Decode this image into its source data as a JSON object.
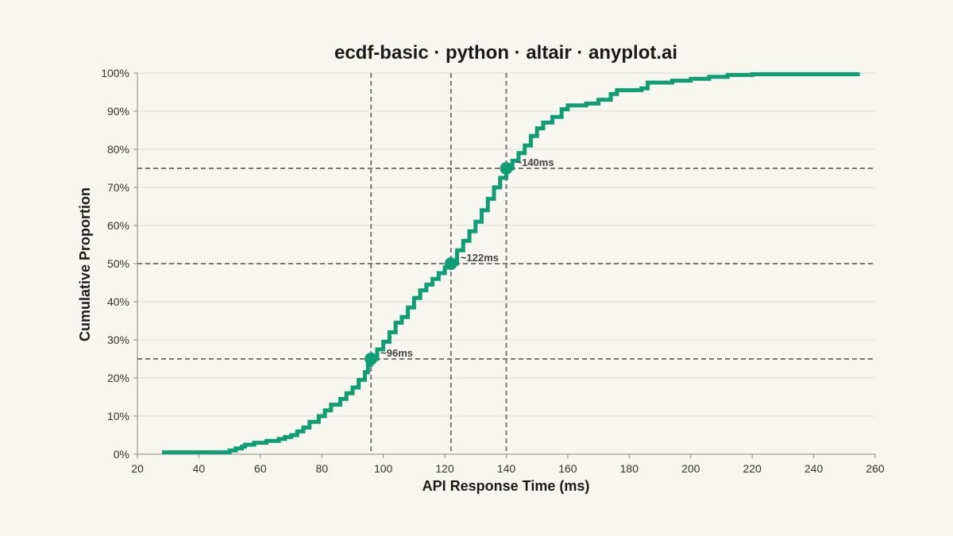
{
  "chart_data": {
    "type": "line",
    "subtype": "ecdf",
    "title": "ecdf-basic · python · altair · anyplot.ai",
    "xlabel": "API Response Time (ms)",
    "ylabel": "Cumulative Proportion",
    "xlim": [
      20,
      260
    ],
    "ylim": [
      0,
      1
    ],
    "x_ticks": [
      20,
      40,
      60,
      80,
      100,
      120,
      140,
      160,
      180,
      200,
      220,
      240,
      260
    ],
    "y_ticks": [
      0,
      0.1,
      0.2,
      0.3,
      0.4,
      0.5,
      0.6,
      0.7,
      0.8,
      0.9,
      1.0
    ],
    "y_tick_labels": [
      "0%",
      "10%",
      "20%",
      "30%",
      "40%",
      "50%",
      "60%",
      "70%",
      "80%",
      "90%",
      "100%"
    ],
    "x_tick_labels": [
      "20",
      "40",
      "60",
      "80",
      "100",
      "120",
      "140",
      "160",
      "180",
      "200",
      "220",
      "240",
      "260"
    ],
    "grid": true,
    "line_color": "#0F9D74",
    "ref_line_color": "#777777",
    "series": [
      {
        "points": [
          [
            28,
            0.005
          ],
          [
            48,
            0.005
          ],
          [
            50,
            0.01
          ],
          [
            52,
            0.015
          ],
          [
            54,
            0.02
          ],
          [
            55,
            0.025
          ],
          [
            58,
            0.03
          ],
          [
            62,
            0.035
          ],
          [
            66,
            0.04
          ],
          [
            68,
            0.045
          ],
          [
            70,
            0.05
          ],
          [
            72,
            0.06
          ],
          [
            74,
            0.07
          ],
          [
            76,
            0.085
          ],
          [
            79,
            0.1
          ],
          [
            81,
            0.115
          ],
          [
            83,
            0.13
          ],
          [
            86,
            0.145
          ],
          [
            88,
            0.16
          ],
          [
            90,
            0.175
          ],
          [
            92,
            0.195
          ],
          [
            94,
            0.215
          ],
          [
            95,
            0.235
          ],
          [
            96,
            0.25
          ],
          [
            98,
            0.275
          ],
          [
            100,
            0.295
          ],
          [
            102,
            0.32
          ],
          [
            104,
            0.345
          ],
          [
            106,
            0.36
          ],
          [
            108,
            0.385
          ],
          [
            110,
            0.41
          ],
          [
            112,
            0.43
          ],
          [
            114,
            0.445
          ],
          [
            116,
            0.46
          ],
          [
            118,
            0.475
          ],
          [
            120,
            0.49
          ],
          [
            122,
            0.5
          ],
          [
            124,
            0.535
          ],
          [
            126,
            0.56
          ],
          [
            128,
            0.585
          ],
          [
            130,
            0.61
          ],
          [
            132,
            0.64
          ],
          [
            134,
            0.67
          ],
          [
            136,
            0.7
          ],
          [
            138,
            0.725
          ],
          [
            140,
            0.75
          ],
          [
            142,
            0.77
          ],
          [
            144,
            0.79
          ],
          [
            146,
            0.81
          ],
          [
            148,
            0.835
          ],
          [
            150,
            0.855
          ],
          [
            152,
            0.87
          ],
          [
            155,
            0.885
          ],
          [
            158,
            0.905
          ],
          [
            160,
            0.915
          ],
          [
            166,
            0.92
          ],
          [
            170,
            0.93
          ],
          [
            174,
            0.945
          ],
          [
            176,
            0.955
          ],
          [
            184,
            0.96
          ],
          [
            186,
            0.975
          ],
          [
            194,
            0.98
          ],
          [
            200,
            0.985
          ],
          [
            206,
            0.99
          ],
          [
            212,
            0.995
          ],
          [
            220,
            0.997
          ],
          [
            255,
            0.997
          ]
        ]
      }
    ],
    "reference_points": [
      {
        "quantile": 0.25,
        "x": 96,
        "label": "~96ms"
      },
      {
        "quantile": 0.5,
        "x": 122,
        "label": "~122ms"
      },
      {
        "quantile": 0.75,
        "x": 140,
        "label": "~140ms"
      }
    ]
  }
}
